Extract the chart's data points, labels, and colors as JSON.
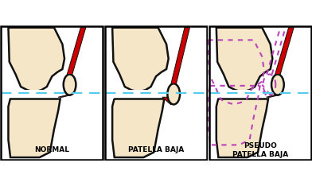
{
  "panel_labels": [
    "NORMAL",
    "PATELLA BAJA",
    "PSEUDO\nPATELLA BAJA"
  ],
  "bg_color": "#ffffff",
  "bone_fill": "#f5e6c8",
  "bone_edge": "#111111",
  "tendon_color": "#cc0000",
  "dashed_line_color": "#55ccee",
  "purple_dashed_color": "#bb44bb",
  "lw_bone": 1.8,
  "lw_tendon": 0.8
}
